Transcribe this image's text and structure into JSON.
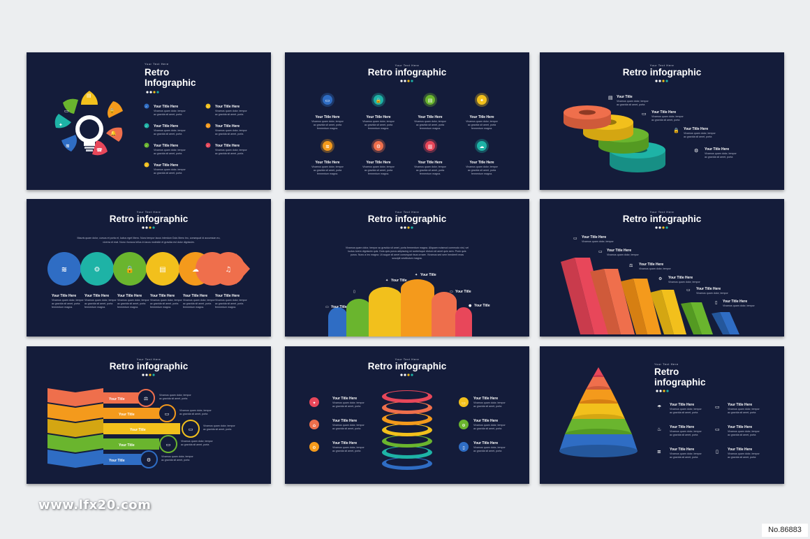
{
  "common": {
    "title": "Retro infographic",
    "title_line1": "Retro",
    "title_line2": "infographic",
    "title_line2_alt": "Infographic",
    "subtitle": "Your Text Here",
    "item_title": "Your Title Here",
    "short_title": "Your Title",
    "body_line1": "Vivamus quam dolor, tempor",
    "body_line2": "ac gravida sit amet, porta",
    "body_line3": "fermentum magna."
  },
  "slide4_paragraph": [
    "Mauris quam dolor, cursus et porta et, luctus eget libero. Nunc tempor lacus interdum Duis libero leo, consequat id accumsan eu,",
    "viverra et erat. Nunc rhoncus tellus in lacus molestie et gravida est dolor dignissim."
  ],
  "slide5_paragraph": [
    "Vivamus quam dolor, tempor ac gravida sit amet, porta fermentum magna. Aliquam euismod commodo nisl, vel",
    "luctus lorem dignissim quis. Duis quis purus adipiscing mi scelerisque dictum sit amet quis sem. Proin quis",
    "purus. Nunc a leo magna. Ut augue sit amet consequat risus ornare. Vivamus sed sem hendrerit enas",
    "suscipit vestibulum magna."
  ],
  "colors": {
    "blue": "#2f6dc4",
    "teal": "#1eb3a6",
    "green": "#6ab52e",
    "yellow": "#f2c01c",
    "orange": "#f49a1c",
    "coral": "#ef6f4c",
    "red": "#e8475a",
    "navy": "#141c3a"
  },
  "icons": [
    "monitor-icon",
    "lock-icon",
    "clipboard-icon",
    "lightbulb-icon",
    "wifi-icon",
    "gear-icon",
    "cloud-icon",
    "music-icon",
    "scale-icon",
    "umbrella-icon",
    "flame-icon",
    "layers-icon",
    "phone-icon",
    "check-icon"
  ],
  "watermark": "www.lfx20.com",
  "code": "No.86883"
}
